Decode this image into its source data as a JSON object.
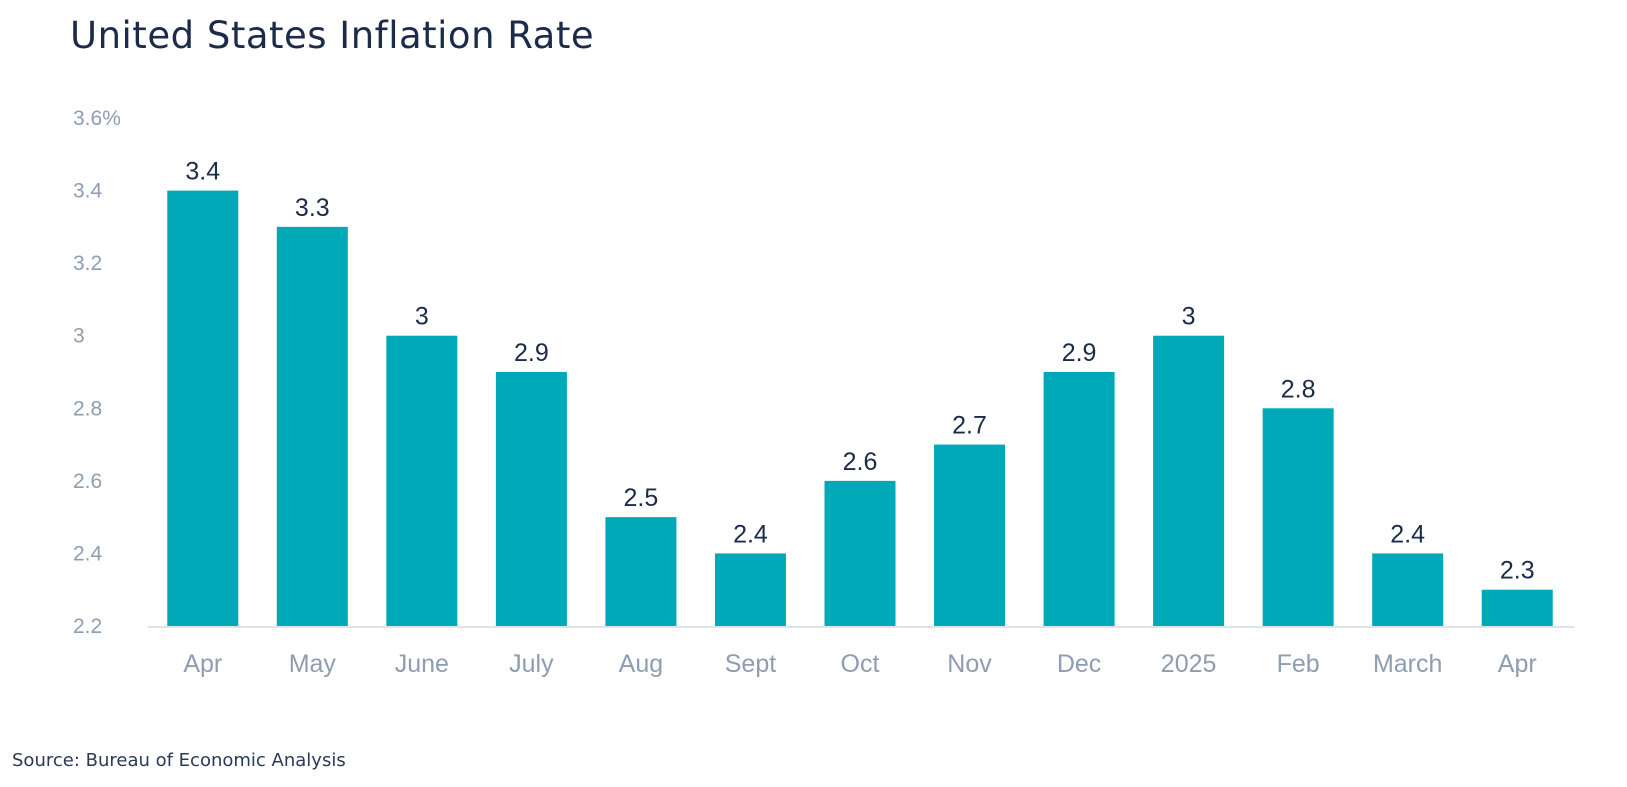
{
  "chart_data": {
    "type": "bar",
    "title": "United States Inflation Rate",
    "categories": [
      "Apr",
      "May",
      "June",
      "July",
      "Aug",
      "Sept",
      "Oct",
      "Nov",
      "Dec",
      "2025",
      "Feb",
      "March",
      "Apr"
    ],
    "values": [
      3.4,
      3.3,
      3.0,
      2.9,
      2.5,
      2.4,
      2.6,
      2.7,
      2.9,
      3.0,
      2.8,
      2.4,
      2.3
    ],
    "data_labels": [
      "3.4",
      "3.3",
      "3",
      "2.9",
      "2.5",
      "2.4",
      "2.6",
      "2.7",
      "2.9",
      "3",
      "2.8",
      "2.4",
      "2.3"
    ],
    "y_ticks": [
      2.2,
      2.4,
      2.6,
      2.8,
      3.0,
      3.2,
      3.4,
      3.6
    ],
    "y_tick_labels": [
      "2.2",
      "2.4",
      "2.6",
      "2.8",
      "3",
      "3.2",
      "3.4",
      "3.6%"
    ],
    "ylim": [
      2.2,
      3.6
    ],
    "xlabel": "",
    "ylabel": "",
    "grid": false,
    "bar_color": "#00a9b7",
    "baseline_color": "#dde3ea"
  },
  "source": "Source: Bureau of Economic Analysis"
}
